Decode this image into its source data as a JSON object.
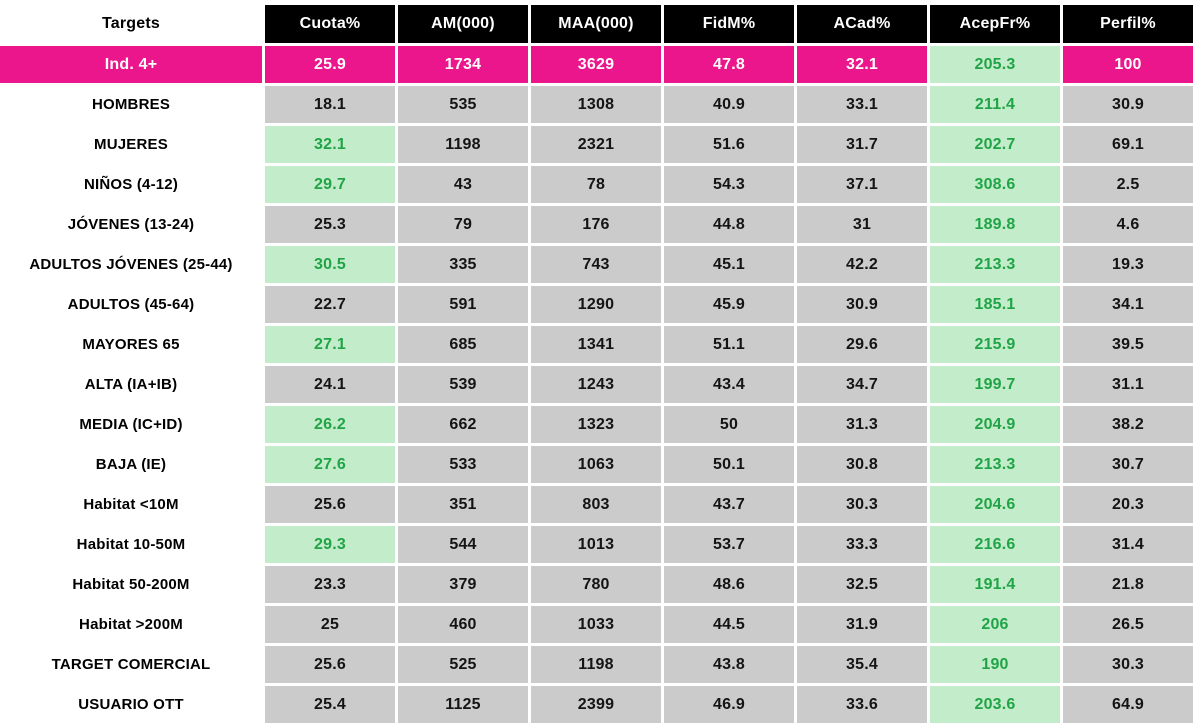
{
  "chart_data": {
    "type": "table",
    "title": "Audience targets table",
    "targets_header": "Targets",
    "columns": [
      "Cuota%",
      "AM(000)",
      "MAA(000)",
      "FidM%",
      "ACad%",
      "AcepFr%",
      "Perfil%"
    ],
    "rows": [
      {
        "target": "Ind. 4+",
        "total": true,
        "values": [
          "25.9",
          "1734",
          "3629",
          "47.8",
          "32.1",
          "205.3",
          "100"
        ],
        "green_cols": [
          5
        ]
      },
      {
        "target": "HOMBRES",
        "total": false,
        "values": [
          "18.1",
          "535",
          "1308",
          "40.9",
          "33.1",
          "211.4",
          "30.9"
        ],
        "green_cols": [
          5
        ]
      },
      {
        "target": "MUJERES",
        "total": false,
        "values": [
          "32.1",
          "1198",
          "2321",
          "51.6",
          "31.7",
          "202.7",
          "69.1"
        ],
        "green_cols": [
          0,
          5
        ]
      },
      {
        "target": "NIÑOS (4-12)",
        "total": false,
        "values": [
          "29.7",
          "43",
          "78",
          "54.3",
          "37.1",
          "308.6",
          "2.5"
        ],
        "green_cols": [
          0,
          5
        ]
      },
      {
        "target": "JÓVENES (13-24)",
        "total": false,
        "values": [
          "25.3",
          "79",
          "176",
          "44.8",
          "31",
          "189.8",
          "4.6"
        ],
        "green_cols": [
          5
        ]
      },
      {
        "target": "ADULTOS JÓVENES (25-44)",
        "total": false,
        "values": [
          "30.5",
          "335",
          "743",
          "45.1",
          "42.2",
          "213.3",
          "19.3"
        ],
        "green_cols": [
          0,
          5
        ]
      },
      {
        "target": "ADULTOS (45-64)",
        "total": false,
        "values": [
          "22.7",
          "591",
          "1290",
          "45.9",
          "30.9",
          "185.1",
          "34.1"
        ],
        "green_cols": [
          5
        ]
      },
      {
        "target": "MAYORES 65",
        "total": false,
        "values": [
          "27.1",
          "685",
          "1341",
          "51.1",
          "29.6",
          "215.9",
          "39.5"
        ],
        "green_cols": [
          0,
          5
        ]
      },
      {
        "target": "ALTA (IA+IB)",
        "total": false,
        "values": [
          "24.1",
          "539",
          "1243",
          "43.4",
          "34.7",
          "199.7",
          "31.1"
        ],
        "green_cols": [
          5
        ]
      },
      {
        "target": "MEDIA (IC+ID)",
        "total": false,
        "values": [
          "26.2",
          "662",
          "1323",
          "50",
          "31.3",
          "204.9",
          "38.2"
        ],
        "green_cols": [
          0,
          5
        ]
      },
      {
        "target": "BAJA (IE)",
        "total": false,
        "values": [
          "27.6",
          "533",
          "1063",
          "50.1",
          "30.8",
          "213.3",
          "30.7"
        ],
        "green_cols": [
          0,
          5
        ]
      },
      {
        "target": "Habitat <10M",
        "total": false,
        "values": [
          "25.6",
          "351",
          "803",
          "43.7",
          "30.3",
          "204.6",
          "20.3"
        ],
        "green_cols": [
          5
        ]
      },
      {
        "target": "Habitat 10-50M",
        "total": false,
        "values": [
          "29.3",
          "544",
          "1013",
          "53.7",
          "33.3",
          "216.6",
          "31.4"
        ],
        "green_cols": [
          0,
          5
        ]
      },
      {
        "target": "Habitat 50-200M",
        "total": false,
        "values": [
          "23.3",
          "379",
          "780",
          "48.6",
          "32.5",
          "191.4",
          "21.8"
        ],
        "green_cols": [
          5
        ]
      },
      {
        "target": "Habitat >200M",
        "total": false,
        "values": [
          "25",
          "460",
          "1033",
          "44.5",
          "31.9",
          "206",
          "26.5"
        ],
        "green_cols": [
          5
        ]
      },
      {
        "target": "TARGET COMERCIAL",
        "total": false,
        "values": [
          "25.6",
          "525",
          "1198",
          "43.8",
          "35.4",
          "190",
          "30.3"
        ],
        "green_cols": [
          5
        ]
      },
      {
        "target": "USUARIO OTT",
        "total": false,
        "values": [
          "25.4",
          "1125",
          "2399",
          "46.9",
          "33.6",
          "203.6",
          "64.9"
        ],
        "green_cols": [
          5
        ]
      }
    ],
    "layout": {
      "green_rule": "AcepFr% column always highlighted green; Cuota% highlighted green when above total share",
      "total_row_style": "magenta"
    },
    "colors": {
      "header_bg": "#000000",
      "header_text": "#ffffff",
      "cell_gray_bg": "#cbcbcb",
      "green_bg": "#c3edca",
      "green_text": "#21a447",
      "magenta_bg": "#eb158c",
      "magenta_text": "#ffffff"
    }
  }
}
